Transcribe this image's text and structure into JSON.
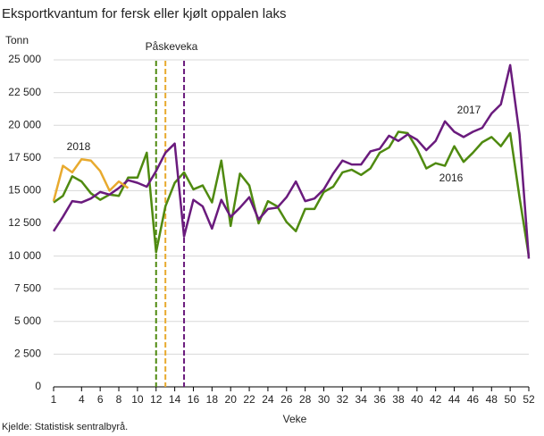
{
  "chart_data": {
    "type": "line",
    "title": "Eksportkvantum for fersk eller kjølt oppalen laks",
    "y_label": "Tonn",
    "x_label": "Veke",
    "source": "Kjelde: Statistisk sentralbyrå.",
    "annotation": "Påskeveka",
    "x": [
      1,
      2,
      3,
      4,
      5,
      6,
      7,
      8,
      9,
      10,
      11,
      12,
      13,
      14,
      15,
      16,
      17,
      18,
      19,
      20,
      21,
      22,
      23,
      24,
      25,
      26,
      27,
      28,
      29,
      30,
      31,
      32,
      33,
      34,
      35,
      36,
      37,
      38,
      39,
      40,
      41,
      42,
      43,
      44,
      45,
      46,
      47,
      48,
      49,
      50,
      51,
      52
    ],
    "series": [
      {
        "name": "2016",
        "color": "#4f8a10",
        "easter_week": 12,
        "values": [
          14100,
          14600,
          16100,
          15700,
          14800,
          14300,
          14700,
          14600,
          16000,
          16000,
          17900,
          10300,
          13800,
          15600,
          16400,
          15100,
          15400,
          14100,
          17300,
          12300,
          16300,
          15400,
          12500,
          14200,
          13800,
          12600,
          11900,
          13600,
          13600,
          14900,
          15300,
          16400,
          16600,
          16200,
          16700,
          17900,
          18300,
          19500,
          19400,
          18200,
          16700,
          17100,
          16900,
          18400,
          17200,
          17900,
          18700,
          19100,
          18400,
          19400,
          14500,
          10000
        ]
      },
      {
        "name": "2017",
        "color": "#6a1b7d",
        "easter_week": 15,
        "values": [
          11900,
          13000,
          14200,
          14100,
          14400,
          14900,
          14700,
          15200,
          15800,
          15600,
          15300,
          16500,
          17900,
          18600,
          11500,
          14300,
          13800,
          12100,
          14300,
          13000,
          13700,
          14500,
          12800,
          13600,
          13700,
          14500,
          15700,
          14200,
          14400,
          15100,
          16300,
          17300,
          17000,
          17000,
          18000,
          18200,
          19200,
          18800,
          19300,
          18900,
          18100,
          18800,
          20300,
          19500,
          19100,
          19500,
          19800,
          20900,
          21600,
          24600,
          19300,
          9800
        ]
      },
      {
        "name": "2018",
        "color": "#e8aa2e",
        "easter_week": 13,
        "values": [
          14200,
          16900,
          16400,
          17400,
          17300,
          16500,
          15000,
          15700,
          15200,
          null,
          null,
          null,
          null,
          null,
          null,
          null,
          null,
          null,
          null,
          null,
          null,
          null,
          null,
          null,
          null,
          null,
          null,
          null,
          null,
          null,
          null,
          null,
          null,
          null,
          null,
          null,
          null,
          null,
          null,
          null,
          null,
          null,
          null,
          null,
          null,
          null,
          null,
          null,
          null,
          null,
          null,
          null
        ]
      }
    ],
    "xlim": [
      1,
      52
    ],
    "xticks": [
      1,
      4,
      6,
      8,
      10,
      12,
      14,
      16,
      18,
      20,
      22,
      24,
      26,
      28,
      30,
      32,
      34,
      36,
      38,
      40,
      42,
      44,
      46,
      48,
      50,
      52
    ],
    "ylim": [
      0,
      25000
    ],
    "yticks": [
      0,
      {
        "value": 2500,
        "label": "2 500"
      },
      {
        "value": 5000,
        "label": "5 000"
      },
      {
        "value": 7500,
        "label": "7 500"
      },
      {
        "value": 10000,
        "label": "10 000"
      },
      {
        "value": 12500,
        "label": "12 500"
      },
      {
        "value": 15000,
        "label": "15 000"
      },
      {
        "value": 17500,
        "label": "17 500"
      },
      {
        "value": 20000,
        "label": "20 000"
      },
      {
        "value": 22500,
        "label": "22 500"
      },
      {
        "value": 25000,
        "label": "25 000"
      }
    ],
    "grid": true
  }
}
